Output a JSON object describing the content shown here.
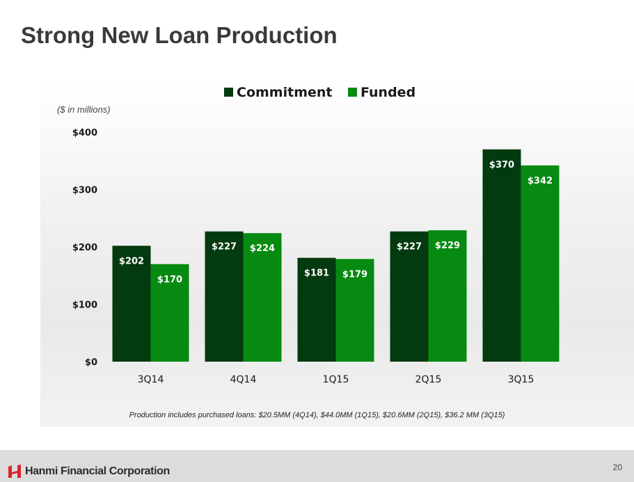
{
  "title": "Strong New Loan Production",
  "unit_note": "($ in millions)",
  "footnote": "Production includes purchased loans: $20.5MM (4Q14), $44.0MM (1Q15), $20.6MM (2Q15), $36.2 MM (3Q15)",
  "footer": {
    "logo_text": "Hanmi Financial Corporation",
    "page_number": "20"
  },
  "colors": {
    "commitment": "#043a0f",
    "funded": "#078a11",
    "label": "#ffffff",
    "axis_text": "#1a1a1a",
    "logo_red": "#d7262d"
  },
  "chart_data": {
    "type": "bar",
    "categories": [
      "3Q14",
      "4Q14",
      "1Q15",
      "2Q15",
      "3Q15"
    ],
    "series": [
      {
        "name": "Commitment",
        "values": [
          202,
          227,
          181,
          227,
          370
        ],
        "labels": [
          "$202",
          "$227",
          "$181",
          "$227",
          "$370"
        ]
      },
      {
        "name": "Funded",
        "values": [
          170,
          224,
          179,
          229,
          342
        ],
        "labels": [
          "$170",
          "$224",
          "$179",
          "$229",
          "$342"
        ]
      }
    ],
    "ylim": [
      0,
      400
    ],
    "yticks": [
      0,
      100,
      200,
      300,
      400
    ],
    "ytick_labels": [
      "$0",
      "$100",
      "$200",
      "$300",
      "$400"
    ],
    "legend_position": "top-center",
    "grid": false
  }
}
